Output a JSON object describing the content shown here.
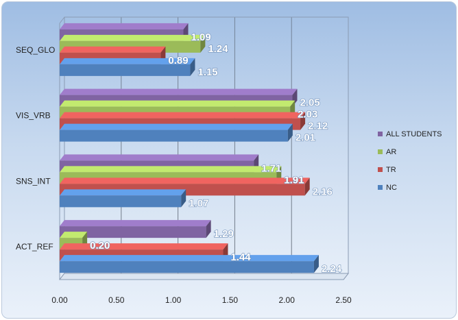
{
  "chart_data": {
    "type": "bar",
    "orientation": "horizontal",
    "title": "",
    "xlabel": "",
    "ylabel": "",
    "xlim": [
      0,
      2.5
    ],
    "x_ticks": [
      "0.00",
      "0.50",
      "1.00",
      "1.50",
      "2.00",
      "2.50"
    ],
    "categories": [
      "SEQ_GLO",
      "VIS_VRB",
      "SNS_INT",
      "ACT_REF"
    ],
    "series": [
      {
        "name": "ALL STUDENTS",
        "color": "#8064a2",
        "values": [
          1.09,
          2.05,
          1.71,
          1.29
        ],
        "labels": [
          "1.09",
          "2.05",
          "1.71",
          "1.29"
        ]
      },
      {
        "name": "AR",
        "color": "#9bbb59",
        "values": [
          1.24,
          2.03,
          1.91,
          0.2
        ],
        "labels": [
          "1.24",
          "2.03",
          "1.91",
          "0.20"
        ]
      },
      {
        "name": "TR",
        "color": "#c0504d",
        "values": [
          0.89,
          2.12,
          2.16,
          1.44
        ],
        "labels": [
          "0.89",
          "2.12",
          "2.16",
          "1.44"
        ]
      },
      {
        "name": "NC",
        "color": "#4f81bd",
        "values": [
          1.15,
          2.01,
          1.07,
          2.24
        ],
        "labels": [
          "1.15",
          "2.01",
          "1.07",
          "2.24"
        ]
      }
    ],
    "legend": {
      "position": "right",
      "order": [
        "ALL STUDENTS",
        "AR",
        "TR",
        "NC"
      ]
    },
    "grid": true
  }
}
